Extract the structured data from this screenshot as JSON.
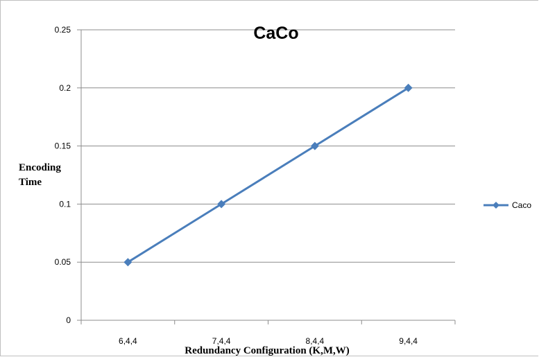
{
  "chart_data": {
    "type": "line",
    "title": "CaCo",
    "xlabel": "Redundancy Configuration (K,M,W)",
    "ylabel": [
      "Encoding",
      "Time"
    ],
    "categories": [
      "6,4,4",
      "7,4,4",
      "8,4,4",
      "9,4,4"
    ],
    "y_ticks": [
      "0",
      "0.05",
      "0.1",
      "0.15",
      "0.2",
      "0.25"
    ],
    "ylim": [
      0,
      0.25
    ],
    "grid": true,
    "legend": "right",
    "series": [
      {
        "name": "Caco",
        "values": [
          0.05,
          0.1,
          0.15,
          0.2
        ],
        "color": "#4a7ebb",
        "marker": "diamond"
      }
    ]
  }
}
